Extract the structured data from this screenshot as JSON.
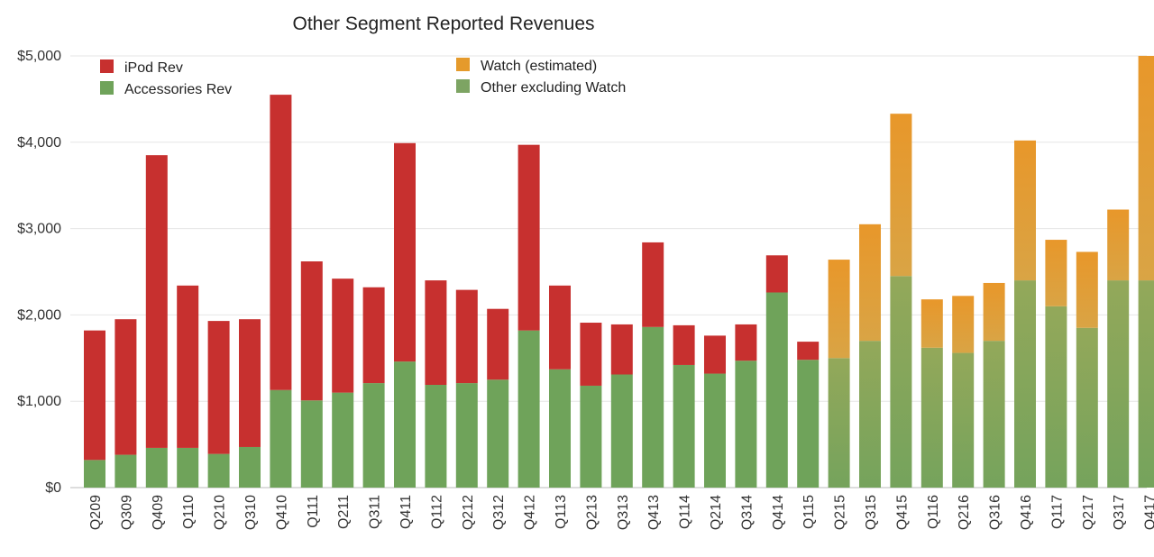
{
  "chart_data": {
    "type": "bar",
    "stacked": true,
    "title": "Other Segment Reported Revenues",
    "xlabel": "",
    "ylabel": "",
    "ylim": [
      0,
      5000
    ],
    "yticks": [
      "$0",
      "$1,000",
      "$2,000",
      "$3,000",
      "$4,000",
      "$5,000"
    ],
    "grid": "horizontal",
    "legend": "top-left",
    "categories": [
      "Q209",
      "Q309",
      "Q409",
      "Q110",
      "Q210",
      "Q310",
      "Q410",
      "Q111",
      "Q211",
      "Q311",
      "Q411",
      "Q112",
      "Q212",
      "Q312",
      "Q412",
      "Q113",
      "Q213",
      "Q313",
      "Q413",
      "Q114",
      "Q214",
      "Q314",
      "Q414",
      "Q115",
      "Q215",
      "Q315",
      "Q415",
      "Q116",
      "Q216",
      "Q316",
      "Q416",
      "Q117",
      "Q217",
      "Q317",
      "Q417"
    ],
    "series": [
      {
        "name": "Accessories Rev",
        "color": "#6fa35a",
        "values": [
          320,
          380,
          460,
          460,
          390,
          470,
          1130,
          1010,
          1100,
          1210,
          1460,
          1190,
          1210,
          1250,
          1820,
          1370,
          1180,
          1310,
          1860,
          1420,
          1320,
          1470,
          2260,
          1480,
          0,
          0,
          0,
          0,
          0,
          0,
          0,
          0,
          0,
          0,
          0
        ]
      },
      {
        "name": "iPod Rev",
        "color": "#c7302f",
        "values": [
          1500,
          1570,
          3390,
          1880,
          1540,
          1480,
          3420,
          1610,
          1320,
          1110,
          2530,
          1210,
          1080,
          820,
          2150,
          970,
          730,
          580,
          980,
          460,
          440,
          420,
          430,
          210,
          0,
          0,
          0,
          0,
          0,
          0,
          0,
          0,
          0,
          0,
          0
        ]
      },
      {
        "name": "Other excluding Watch",
        "color": "#7da463",
        "values": [
          0,
          0,
          0,
          0,
          0,
          0,
          0,
          0,
          0,
          0,
          0,
          0,
          0,
          0,
          0,
          0,
          0,
          0,
          0,
          0,
          0,
          0,
          0,
          0,
          1500,
          1700,
          2450,
          1620,
          1560,
          1700,
          2400,
          2100,
          1850,
          2400,
          2400
        ]
      },
      {
        "name": "Watch (estimated)",
        "color": "#e59a2b",
        "values": [
          0,
          0,
          0,
          0,
          0,
          0,
          0,
          0,
          0,
          0,
          0,
          0,
          0,
          0,
          0,
          0,
          0,
          0,
          0,
          0,
          0,
          0,
          0,
          0,
          1140,
          1350,
          1880,
          560,
          660,
          670,
          1620,
          770,
          880,
          820,
          2600
        ]
      }
    ],
    "legend_entries": [
      {
        "label": "iPod Rev",
        "color": "#c7302f"
      },
      {
        "label": "Accessories Rev",
        "color": "#6fa35a"
      },
      {
        "label": "Watch (estimated)",
        "color": "#e59a2b"
      },
      {
        "label": "Other excluding Watch",
        "color": "#7da463"
      }
    ]
  }
}
